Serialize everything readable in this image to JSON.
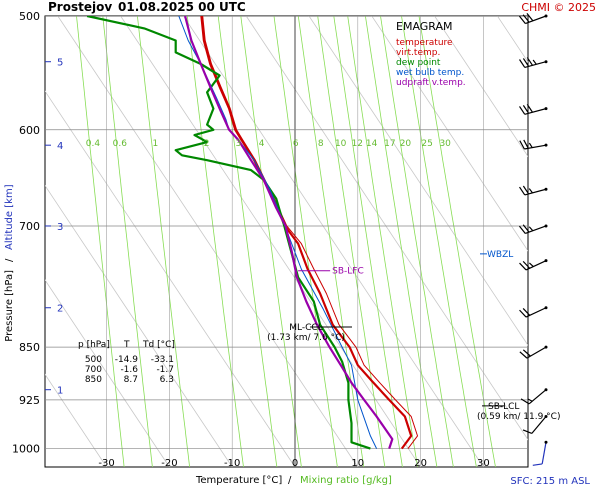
{
  "header": {
    "station": "Prostejov",
    "datetime": "01.08.2025 00 UTC",
    "copyright": "CHMI © 2025"
  },
  "footer": {
    "sfc": "SFC: 215 m ASL"
  },
  "chart_data": {
    "type": "line",
    "title": "EMAGRAM",
    "xlabel": "Temperature [°C]",
    "xlabel_sep": "/",
    "xlabel2": "Mixing ratio [g/kg]",
    "ylabel": "Pressure [hPa]",
    "ylabel_sep": "/",
    "ylabel2": "Altitude [km]",
    "xlim": [
      -37,
      34
    ],
    "ylim": [
      1030,
      500
    ],
    "y_scale": "log",
    "x_ticks": [
      -30,
      -20,
      -10,
      0,
      10,
      20,
      30
    ],
    "y_ticks": [
      500,
      600,
      700,
      850,
      925,
      1000
    ],
    "altitude_ticks": [
      {
        "km": 1,
        "p": 910
      },
      {
        "km": 2,
        "p": 798
      },
      {
        "km": 3,
        "p": 700
      },
      {
        "km": 4,
        "p": 615
      },
      {
        "km": 5,
        "p": 538
      }
    ],
    "mixing_ratio_labels": [
      "0.4",
      "0.6",
      "1",
      "2",
      "3",
      "4",
      "6",
      "8",
      "10",
      "12",
      "14",
      "17",
      "20",
      "25",
      "30"
    ],
    "mixing_ratio_values": [
      0.4,
      0.6,
      1,
      2,
      3,
      4,
      6,
      8,
      10,
      12,
      14,
      17,
      20,
      25,
      30
    ],
    "legend_placement": "top-right",
    "legend": [
      {
        "label": "temperature",
        "color": "#cc0000"
      },
      {
        "label": "virt.temp.",
        "color": "#cc0000"
      },
      {
        "label": "dew point",
        "color": "#008800"
      },
      {
        "label": "wet bulb temp.",
        "color": "#0055cc"
      },
      {
        "label": "udpraft v.temp.",
        "color": "#9900aa"
      }
    ],
    "series": [
      {
        "name": "temperature",
        "color": "#cc0000",
        "points": [
          [
            17,
            1000
          ],
          [
            18.5,
            980
          ],
          [
            17.5,
            950
          ],
          [
            15,
            925
          ],
          [
            12.5,
            900
          ],
          [
            10,
            875
          ],
          [
            8.7,
            850
          ],
          [
            6,
            820
          ],
          [
            4,
            780
          ],
          [
            2,
            750
          ],
          [
            0.5,
            720
          ],
          [
            -1.6,
            700
          ],
          [
            -3.5,
            670
          ],
          [
            -5,
            650
          ],
          [
            -6.5,
            630
          ],
          [
            -8.5,
            610
          ],
          [
            -9.5,
            600
          ],
          [
            -10.5,
            580
          ],
          [
            -12,
            560
          ],
          [
            -13.5,
            540
          ],
          [
            -14.5,
            520
          ],
          [
            -14.9,
            500
          ]
        ]
      },
      {
        "name": "virt.temp.",
        "color": "#cc0000",
        "points": [
          [
            18,
            1000
          ],
          [
            19.5,
            980
          ],
          [
            18.5,
            950
          ],
          [
            16,
            925
          ],
          [
            13.5,
            900
          ],
          [
            11,
            875
          ],
          [
            9.7,
            850
          ],
          [
            7,
            820
          ],
          [
            5,
            780
          ],
          [
            3,
            750
          ],
          [
            1,
            720
          ],
          [
            -1.3,
            700
          ],
          [
            -3.3,
            670
          ],
          [
            -4.8,
            650
          ],
          [
            -6.3,
            630
          ],
          [
            -8.3,
            610
          ],
          [
            -9.3,
            600
          ],
          [
            -10.3,
            580
          ],
          [
            -11.8,
            560
          ],
          [
            -13.3,
            540
          ],
          [
            -14.3,
            520
          ],
          [
            -14.7,
            500
          ]
        ]
      },
      {
        "name": "dew point",
        "color": "#008800",
        "points": [
          [
            12,
            1000
          ],
          [
            9,
            990
          ],
          [
            9,
            975
          ],
          [
            9,
            960
          ],
          [
            8.5,
            925
          ],
          [
            8.5,
            900
          ],
          [
            7.5,
            870
          ],
          [
            6.3,
            850
          ],
          [
            4,
            820
          ],
          [
            3,
            790
          ],
          [
            0.5,
            760
          ],
          [
            -1.7,
            700
          ],
          [
            -3,
            670
          ],
          [
            -5,
            650
          ],
          [
            -7,
            640
          ],
          [
            -14,
            630
          ],
          [
            -18,
            625
          ],
          [
            -19,
            620
          ],
          [
            -14,
            612
          ],
          [
            -16,
            605
          ],
          [
            -13,
            600
          ],
          [
            -14,
            595
          ],
          [
            -13,
            580
          ],
          [
            -14,
            565
          ],
          [
            -12,
            550
          ],
          [
            -15,
            540
          ],
          [
            -19,
            530
          ],
          [
            -19,
            520
          ],
          [
            -24,
            510
          ],
          [
            -33.1,
            500
          ]
        ]
      },
      {
        "name": "wet bulb temp.",
        "color": "#0055cc",
        "points": [
          [
            13,
            1000
          ],
          [
            12,
            980
          ],
          [
            10,
            925
          ],
          [
            9,
            875
          ],
          [
            7.5,
            850
          ],
          [
            4.5,
            800
          ],
          [
            1,
            750
          ],
          [
            -1.6,
            700
          ],
          [
            -4,
            660
          ],
          [
            -6.5,
            630
          ],
          [
            -9,
            610
          ],
          [
            -10.5,
            600
          ],
          [
            -11,
            590
          ],
          [
            -12.5,
            570
          ],
          [
            -15,
            540
          ],
          [
            -17,
            520
          ],
          [
            -18.5,
            500
          ]
        ]
      },
      {
        "name": "udpraft v.temp.",
        "color": "#9900aa",
        "points": [
          [
            15,
            1000
          ],
          [
            15.5,
            985
          ],
          [
            13,
            950
          ],
          [
            11,
            925
          ],
          [
            9,
            900
          ],
          [
            7.3,
            875
          ],
          [
            5.5,
            850
          ],
          [
            3.5,
            820
          ],
          [
            1.8,
            790
          ],
          [
            0.3,
            760
          ],
          [
            -0.5,
            730
          ],
          [
            -1.5,
            700
          ],
          [
            -3,
            680
          ],
          [
            -5,
            650
          ],
          [
            -7,
            630
          ],
          [
            -9,
            610
          ],
          [
            -10.5,
            600
          ],
          [
            -12,
            580
          ],
          [
            -13.5,
            560
          ],
          [
            -15,
            540
          ],
          [
            -16.5,
            520
          ],
          [
            -17.5,
            500
          ]
        ]
      }
    ],
    "annotations": [
      {
        "label": "SB-LFC",
        "p": 752,
        "t": 0.5,
        "color": "#9900aa"
      },
      {
        "label": "ML-CCL",
        "line2": "(1.73 km/ 7.6 °C)",
        "p": 823,
        "t": 9,
        "color": "#000000"
      },
      {
        "label": "SB-LCL",
        "line2": "(0.59 km/ 11.9 °C)",
        "p": 955,
        "t": 30,
        "color": "#000000"
      },
      {
        "label": "WBZL",
        "p": 732,
        "color": "#0055cc"
      }
    ],
    "table": {
      "headers": [
        "p [hPa]",
        "T",
        "Td [°C]"
      ],
      "rows": [
        [
          "500",
          "-14.9",
          "-33.1"
        ],
        [
          "700",
          "-1.6",
          "-1.7"
        ],
        [
          "850",
          "8.7",
          "6.3"
        ]
      ]
    },
    "wind_barbs": [
      {
        "p": 500,
        "dir": 250,
        "kt": 30
      },
      {
        "p": 538,
        "dir": 255,
        "kt": 35
      },
      {
        "p": 580,
        "dir": 255,
        "kt": 30
      },
      {
        "p": 615,
        "dir": 260,
        "kt": 25
      },
      {
        "p": 660,
        "dir": 255,
        "kt": 25
      },
      {
        "p": 700,
        "dir": 250,
        "kt": 25
      },
      {
        "p": 740,
        "dir": 245,
        "kt": 25
      },
      {
        "p": 798,
        "dir": 245,
        "kt": 20
      },
      {
        "p": 850,
        "dir": 240,
        "kt": 20
      },
      {
        "p": 910,
        "dir": 230,
        "kt": 15
      },
      {
        "p": 950,
        "dir": 220,
        "kt": 10
      },
      {
        "p": 990,
        "dir": 190,
        "kt": 10
      }
    ]
  }
}
